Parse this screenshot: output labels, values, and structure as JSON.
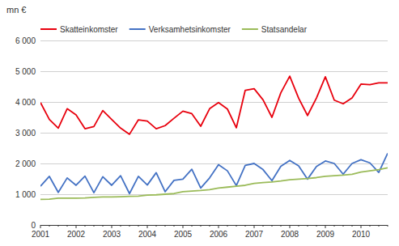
{
  "chart_data": {
    "type": "line",
    "y_label": "mn €",
    "categories": [
      "2001",
      null,
      null,
      null,
      "2002",
      null,
      null,
      null,
      "2003",
      null,
      null,
      null,
      "2004",
      null,
      null,
      null,
      "2005",
      null,
      null,
      null,
      "2006",
      null,
      null,
      null,
      "2007",
      null,
      null,
      null,
      "2008",
      null,
      null,
      null,
      "2009",
      null,
      null,
      null,
      "2010",
      null,
      null,
      null
    ],
    "series": [
      {
        "name": "Skatteinkomster",
        "color": "#e8000d",
        "values": [
          3980,
          3430,
          3150,
          3780,
          3580,
          3130,
          3200,
          3720,
          3430,
          3150,
          2950,
          3420,
          3380,
          3130,
          3230,
          3470,
          3700,
          3620,
          3210,
          3780,
          3980,
          3770,
          3160,
          4380,
          4430,
          4070,
          3500,
          4300,
          4840,
          4120,
          3560,
          4130,
          4820,
          4060,
          3940,
          4130,
          4580,
          4560,
          4620,
          4620
        ]
      },
      {
        "name": "Verksamhetsinkomster",
        "color": "#4472c4",
        "values": [
          1260,
          1580,
          1060,
          1530,
          1290,
          1590,
          1050,
          1570,
          1290,
          1600,
          1020,
          1580,
          1300,
          1700,
          1080,
          1450,
          1490,
          1810,
          1200,
          1530,
          1960,
          1760,
          1280,
          1940,
          2000,
          1800,
          1440,
          1910,
          2100,
          1920,
          1490,
          1900,
          2080,
          2000,
          1650,
          2000,
          2120,
          2020,
          1710,
          2330
        ]
      },
      {
        "name": "Statsandelar",
        "color": "#9bbb59",
        "values": [
          830,
          840,
          870,
          870,
          870,
          880,
          900,
          910,
          910,
          920,
          930,
          940,
          970,
          980,
          1000,
          1020,
          1080,
          1100,
          1120,
          1150,
          1200,
          1230,
          1260,
          1290,
          1350,
          1380,
          1400,
          1430,
          1470,
          1490,
          1510,
          1540,
          1580,
          1600,
          1620,
          1650,
          1720,
          1760,
          1800,
          1860
        ]
      }
    ],
    "ylim": [
      0,
      6000
    ],
    "yticks": [
      0,
      {
        "value": 1000,
        "label": "1 000"
      },
      {
        "value": 2000,
        "label": "2 000"
      },
      {
        "value": 3000,
        "label": "3 000"
      },
      {
        "value": 4000,
        "label": "4 000"
      },
      {
        "value": 5000,
        "label": "5 000"
      },
      {
        "value": 6000,
        "label": "6 000"
      }
    ],
    "grid": true,
    "legend": "upper left"
  }
}
